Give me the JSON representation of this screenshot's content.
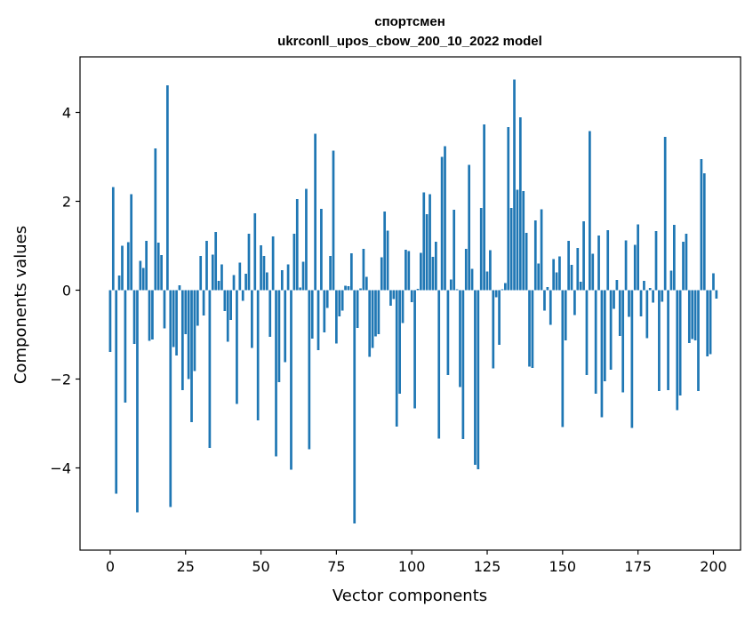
{
  "chart_data": {
    "type": "bar",
    "title_line1": "спортсмен",
    "title_line2": "ukrconll_upos_cbow_200_10_2022 model",
    "xlabel": "Vector components",
    "ylabel": "Components values",
    "xlim": [
      -10,
      209
    ],
    "ylim": [
      -5.85,
      5.25
    ],
    "xticks": [
      0,
      25,
      50,
      75,
      100,
      125,
      150,
      175,
      200
    ],
    "xtick_labels": [
      "0",
      "25",
      "50",
      "75",
      "100",
      "125",
      "150",
      "175",
      "200"
    ],
    "yticks": [
      -4,
      -2,
      0,
      2,
      4
    ],
    "ytick_labels": [
      "−4",
      "−2",
      "0",
      "2",
      "4"
    ],
    "grid": false,
    "bar_color": "#1f77b4",
    "values": [
      -1.39,
      2.32,
      -4.58,
      0.33,
      1.0,
      -2.53,
      1.08,
      2.16,
      -1.21,
      -5.0,
      0.66,
      0.5,
      1.11,
      -1.14,
      -1.11,
      3.19,
      1.07,
      0.79,
      -0.86,
      4.61,
      -4.88,
      -1.28,
      -1.47,
      0.11,
      -2.25,
      -0.99,
      -2.0,
      -2.97,
      -1.82,
      -0.8,
      0.77,
      -0.57,
      1.11,
      -3.55,
      0.8,
      1.31,
      0.21,
      0.58,
      -0.47,
      -1.16,
      -0.67,
      0.34,
      -2.56,
      0.62,
      -0.24,
      0.37,
      1.27,
      -1.3,
      1.73,
      -2.93,
      1.01,
      0.77,
      0.4,
      -1.05,
      1.21,
      -3.74,
      -2.07,
      0.45,
      -1.62,
      0.58,
      -4.04,
      1.27,
      2.05,
      0.06,
      0.64,
      2.28,
      -3.58,
      -1.09,
      3.52,
      -1.35,
      1.83,
      -0.95,
      -0.4,
      0.77,
      3.14,
      -1.2,
      -0.59,
      -0.46,
      0.1,
      0.09,
      0.83,
      -5.25,
      -0.85,
      0.04,
      0.93,
      0.3,
      -1.5,
      -1.3,
      -1.04,
      -0.99,
      0.74,
      1.77,
      1.34,
      -0.35,
      -0.2,
      -3.07,
      -2.33,
      -0.74,
      0.91,
      0.88,
      -0.27,
      -2.66,
      0.03,
      0.84,
      2.2,
      1.71,
      2.16,
      0.75,
      1.09,
      -3.34,
      3.0,
      3.24,
      -1.91,
      0.24,
      1.81,
      0.02,
      -2.18,
      -3.35,
      0.93,
      2.82,
      0.48,
      -3.93,
      -4.03,
      1.85,
      3.73,
      0.42,
      0.9,
      -1.76,
      -0.16,
      -1.23,
      0.02,
      0.16,
      3.67,
      1.85,
      4.74,
      2.26,
      3.89,
      2.23,
      1.29,
      -1.72,
      -1.75,
      1.57,
      0.6,
      1.82,
      -0.46,
      0.07,
      -0.78,
      0.7,
      0.4,
      0.76,
      -3.08,
      -1.13,
      1.11,
      0.57,
      -0.56,
      0.95,
      0.19,
      1.55,
      -1.91,
      3.58,
      0.82,
      -2.33,
      1.23,
      -2.86,
      -2.05,
      1.35,
      -1.79,
      -0.42,
      0.23,
      -1.03,
      -2.3,
      1.12,
      -0.6,
      -3.1,
      1.02,
      1.48,
      -0.59,
      0.21,
      -1.08,
      0.05,
      -0.28,
      1.33,
      -2.27,
      -0.26,
      3.45,
      -2.25,
      0.44,
      1.47,
      -2.7,
      -2.37,
      1.09,
      1.27,
      -1.19,
      -1.1,
      -1.13,
      -2.27,
      2.95,
      2.63,
      -1.49,
      -1.44,
      0.38,
      -0.19
    ]
  }
}
